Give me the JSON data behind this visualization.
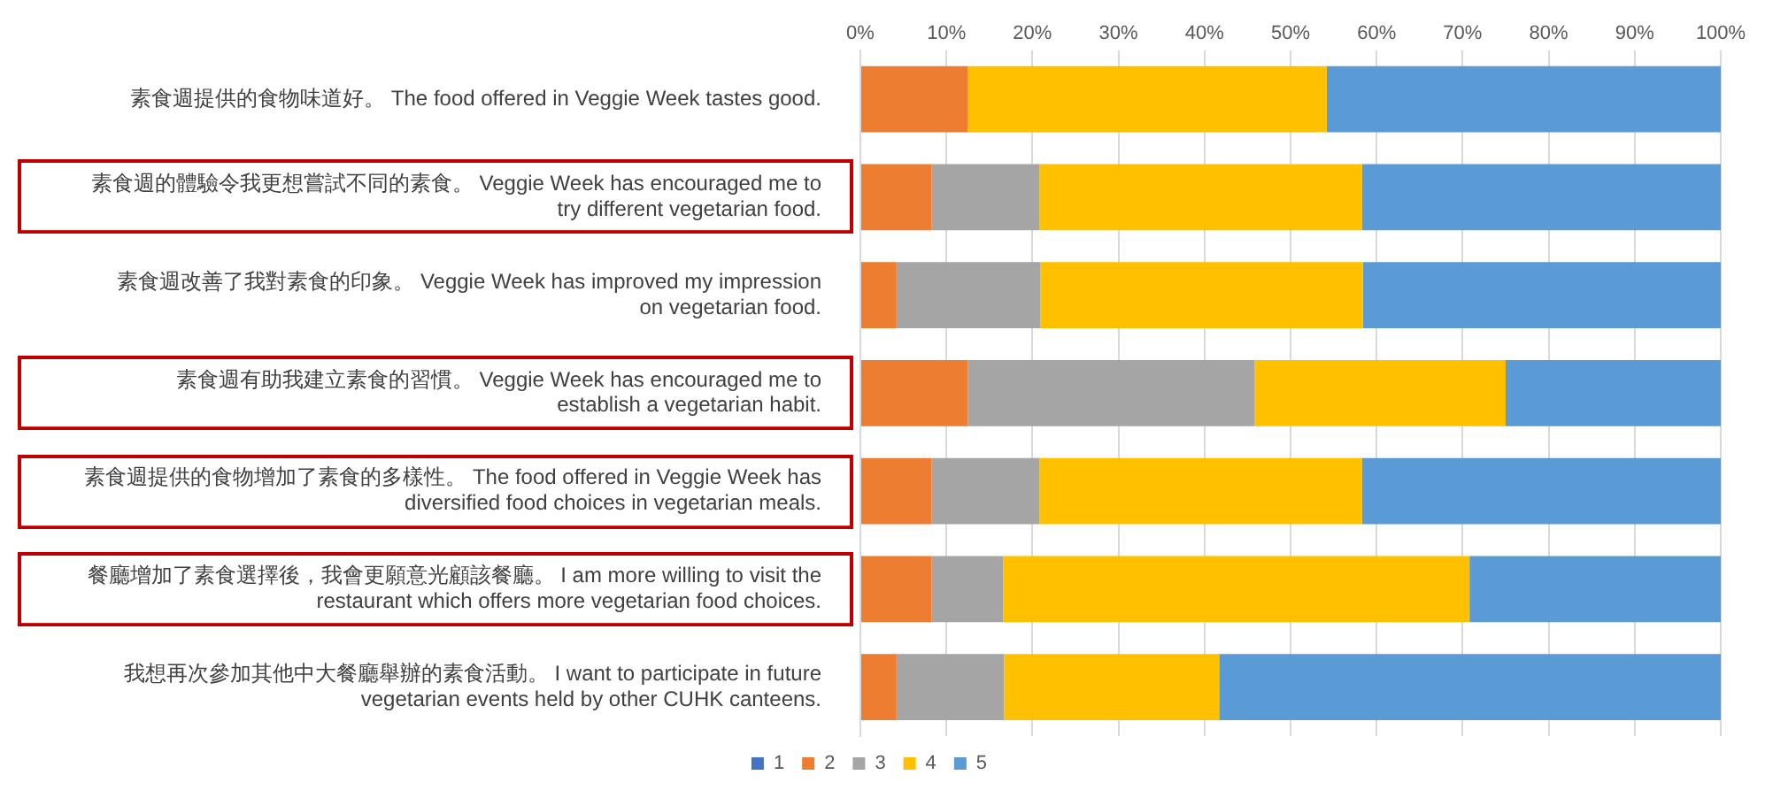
{
  "chart_data": {
    "type": "bar",
    "orientation": "horizontal",
    "stacked": true,
    "grid": "x",
    "legend": "bottom",
    "categories": [
      "素食週提供的食物味道好。 The food offered in Veggie Week tastes good.",
      "素食週的體驗令我更想嘗試不同的素食。 Veggie Week has encouraged me to try different vegetarian food.",
      "素食週改善了我對素食的印象。 Veggie Week has improved my impression on vegetarian food.",
      "素食週有助我建立素食的習慣。 Veggie Week has encouraged me to establish a vegetarian habit.",
      "素食週提供的食物增加了素食的多樣性。 The food offered in Veggie Week has diversified food choices in vegetarian meals.",
      "餐廳增加了素食選擇後，我會更願意光顧該餐廳。 I am more willing to visit the restaurant which offers more vegetarian food choices.",
      "我想再次參加其他中大餐廳舉辦的素食活動。 I want to participate in future vegetarian events held by other CUHK canteens."
    ],
    "xlim": [
      0,
      100
    ],
    "xticks": [
      {
        "value": 0,
        "label": "0%"
      },
      {
        "value": 10,
        "label": "10%"
      },
      {
        "value": 20,
        "label": "20%"
      },
      {
        "value": 30,
        "label": "30%"
      },
      {
        "value": 40,
        "label": "40%"
      },
      {
        "value": 50,
        "label": "50%"
      },
      {
        "value": 60,
        "label": "60%"
      },
      {
        "value": 70,
        "label": "70%"
      },
      {
        "value": 80,
        "label": "80%"
      },
      {
        "value": 90,
        "label": "90%"
      },
      {
        "value": 100,
        "label": "100%"
      }
    ],
    "series": [
      {
        "name": "1",
        "color": "#4472c4",
        "values": [
          0,
          0,
          0,
          0,
          0,
          0,
          0
        ]
      },
      {
        "name": "2",
        "color": "#ed7d31",
        "values": [
          12.5,
          8.3,
          4.2,
          12.5,
          8.3,
          8.3,
          4.2
        ]
      },
      {
        "name": "3",
        "color": "#a5a5a5",
        "values": [
          0,
          12.5,
          16.7,
          33.3,
          12.5,
          8.3,
          12.5
        ]
      },
      {
        "name": "4",
        "color": "#ffc000",
        "values": [
          41.7,
          37.5,
          37.5,
          29.2,
          37.5,
          54.2,
          25
        ]
      },
      {
        "name": "5",
        "color": "#5b9bd5",
        "values": [
          45.8,
          41.7,
          41.7,
          25,
          41.7,
          29.2,
          58.3
        ]
      }
    ]
  }
}
